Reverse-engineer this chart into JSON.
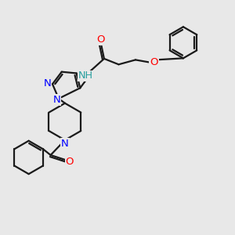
{
  "bg_color": "#e8e8e8",
  "bond_color": "#1a1a1a",
  "N_color": "#0000ff",
  "O_color": "#ff0000",
  "NH_color": "#2aa0a0",
  "line_width": 1.6,
  "figsize": [
    3.0,
    3.0
  ],
  "dpi": 100,
  "xlim": [
    0,
    10
  ],
  "ylim": [
    0,
    10
  ]
}
